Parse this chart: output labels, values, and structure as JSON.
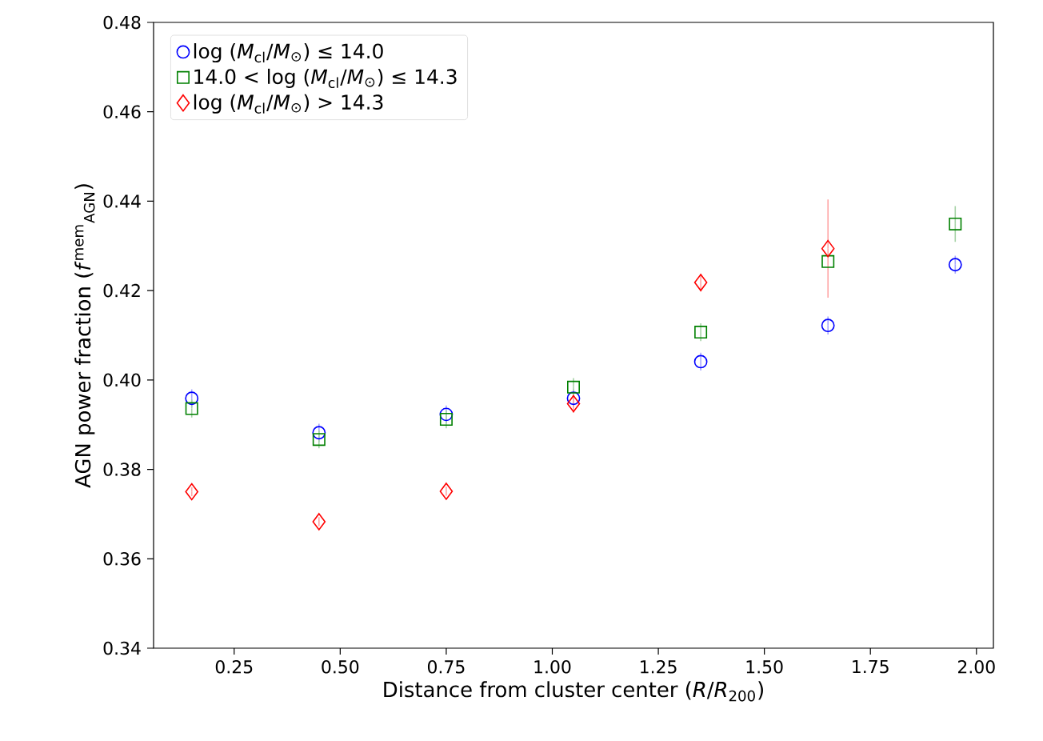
{
  "chart_data": {
    "type": "scatter",
    "xlabel": "Distance from cluster center (*R*/*R*$_{200}$)",
    "ylabel": "AGN power fraction (*f*$^{mem}$$_{AGN}$)",
    "x": [
      0.15,
      0.45,
      0.75,
      1.05,
      1.35,
      1.65,
      1.95
    ],
    "series": [
      {
        "name": "log (*M*$_{cl}$/*M*$_{⊙}$) ≤ 14.0",
        "color": "#0000ff",
        "marker": "circle",
        "values": [
          0.3959,
          0.3882,
          0.3923,
          0.3959,
          0.4041,
          0.4122,
          0.4258
        ],
        "errors": [
          0.002,
          0.002,
          0.002,
          0.002,
          0.002,
          0.002,
          0.002
        ]
      },
      {
        "name": "14.0 < log (*M*$_{cl}$/*M*$_{⊙}$) ≤ 14.3",
        "color": "#008000",
        "marker": "square",
        "values": [
          0.3936,
          0.3867,
          0.3912,
          0.3984,
          0.4107,
          0.4265,
          0.4349
        ],
        "errors": [
          0.002,
          0.002,
          0.002,
          0.002,
          0.002,
          null,
          0.004
        ]
      },
      {
        "name": "log (*M*$_{cl}$/*M*$_{⊙}$) > 14.3",
        "color": "#ff0000",
        "marker": "diamond",
        "values": [
          0.375,
          0.3683,
          0.3751,
          0.3947,
          0.4218,
          0.4294,
          null
        ],
        "errors": [
          0.001,
          0.001,
          0.001,
          0.002,
          0.002,
          0.011,
          null
        ]
      }
    ],
    "xlim": [
      0.06,
      2.04
    ],
    "ylim": [
      0.34,
      0.48
    ],
    "xticks": [
      {
        "value": 0.25,
        "label": "0.25"
      },
      {
        "value": 0.5,
        "label": "0.50"
      },
      {
        "value": 0.75,
        "label": "0.75"
      },
      {
        "value": 1.0,
        "label": "1.00"
      },
      {
        "value": 1.25,
        "label": "1.25"
      },
      {
        "value": 1.5,
        "label": "1.50"
      },
      {
        "value": 1.75,
        "label": "1.75"
      },
      {
        "value": 2.0,
        "label": "2.00"
      }
    ],
    "yticks": [
      {
        "value": 0.34,
        "label": "0.34"
      },
      {
        "value": 0.36,
        "label": "0.36"
      },
      {
        "value": 0.38,
        "label": "0.38"
      },
      {
        "value": 0.4,
        "label": "0.40"
      },
      {
        "value": 0.42,
        "label": "0.42"
      },
      {
        "value": 0.44,
        "label": "0.44"
      },
      {
        "value": 0.46,
        "label": "0.46"
      },
      {
        "value": 0.48,
        "label": "0.48"
      }
    ],
    "grid": false,
    "legend": "top left"
  }
}
